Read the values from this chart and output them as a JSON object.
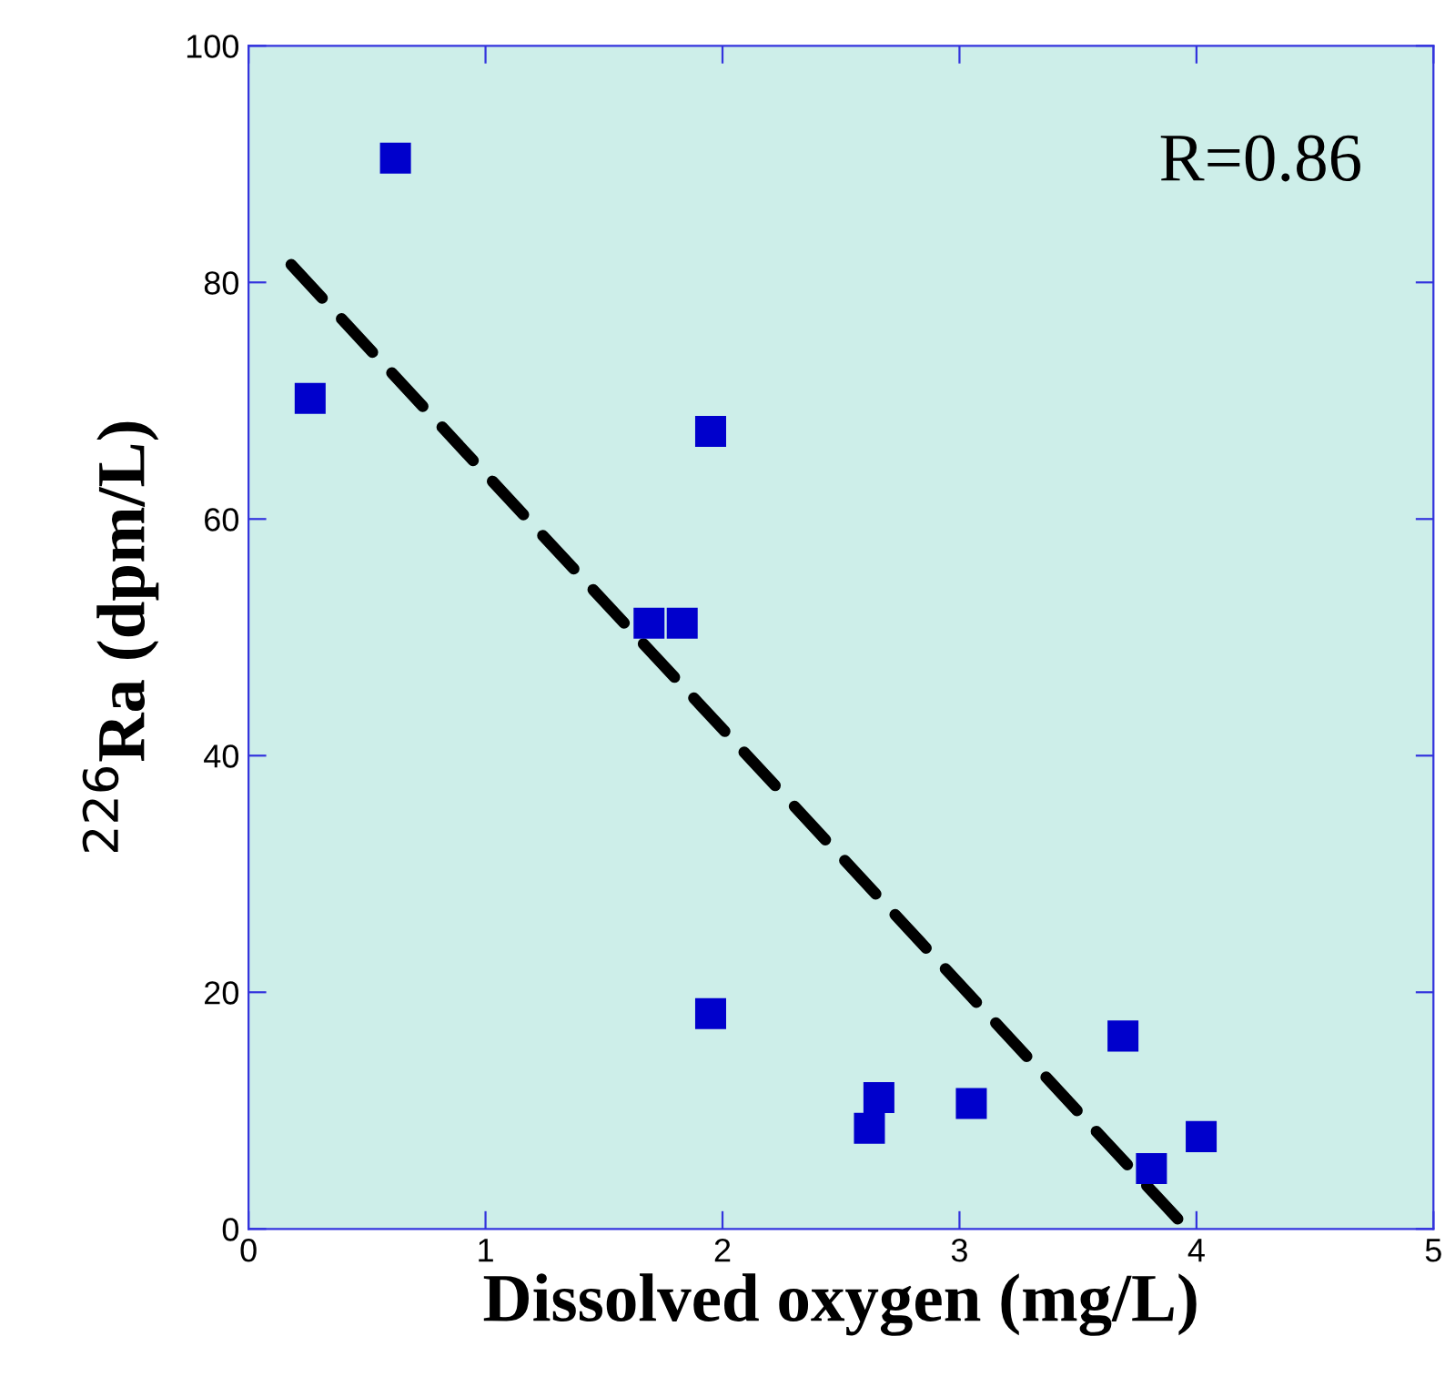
{
  "chart_data": {
    "type": "scatter",
    "xlabel": "Dissolved oxygen (mg/L)",
    "ylabel": "$^{226}$Ra (dpm/L)",
    "annotations": [
      "R=0.86"
    ],
    "xlim": [
      0,
      5
    ],
    "ylim": [
      0,
      100
    ],
    "xticks": [
      0,
      1,
      2,
      3,
      4,
      5
    ],
    "yticks": [
      0,
      20,
      40,
      60,
      80,
      100
    ],
    "grid": false,
    "legend": false,
    "marker": "square",
    "series": [
      {
        "color": "#0000cc",
        "x": [
          0.26,
          0.62,
          1.69,
          1.83,
          1.95,
          1.95,
          2.62,
          2.66,
          3.05,
          3.69,
          3.81,
          4.02
        ],
        "values": [
          70.2,
          90.5,
          51.2,
          51.2,
          67.4,
          18.2,
          8.5,
          11.1,
          10.6,
          16.3,
          5.1,
          7.8
        ]
      },
      {
        "type": "line",
        "color": "#000000",
        "line_style": "dashed",
        "marker": "none",
        "x": [
          0.18,
          3.96
        ],
        "values": [
          81.5,
          0
        ]
      }
    ]
  }
}
